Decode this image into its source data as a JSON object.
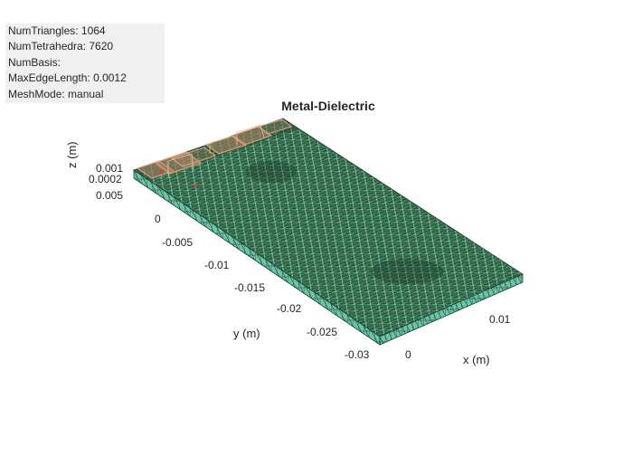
{
  "window": {
    "title": "Metal-Dielectric"
  },
  "info_box": {
    "lines": [
      "NumTriangles: 1064",
      "NumTetrahedra: 7620",
      "NumBasis:",
      "MaxEdgeLength: 0.0012",
      "MeshMode: manual"
    ]
  },
  "axes": {
    "xlabel": "x (m)",
    "ylabel": "y (m)",
    "zlabel": "z (m)",
    "x_ticks": [
      "0",
      "0.01"
    ],
    "y_ticks": [
      "0.005",
      "0",
      "-0.005",
      "-0.01",
      "-0.015",
      "-0.02",
      "-0.025",
      "-0.03"
    ],
    "z_ticks": [
      "0.001",
      "0.0002"
    ]
  },
  "colors": {
    "dielectric_fill": "#1e4a30",
    "dielectric_wire": "#8fe3cf",
    "side_fill": "#6fcfb5",
    "metal_edge": "#c98a68",
    "metal_fill": "#a87a5a"
  }
}
